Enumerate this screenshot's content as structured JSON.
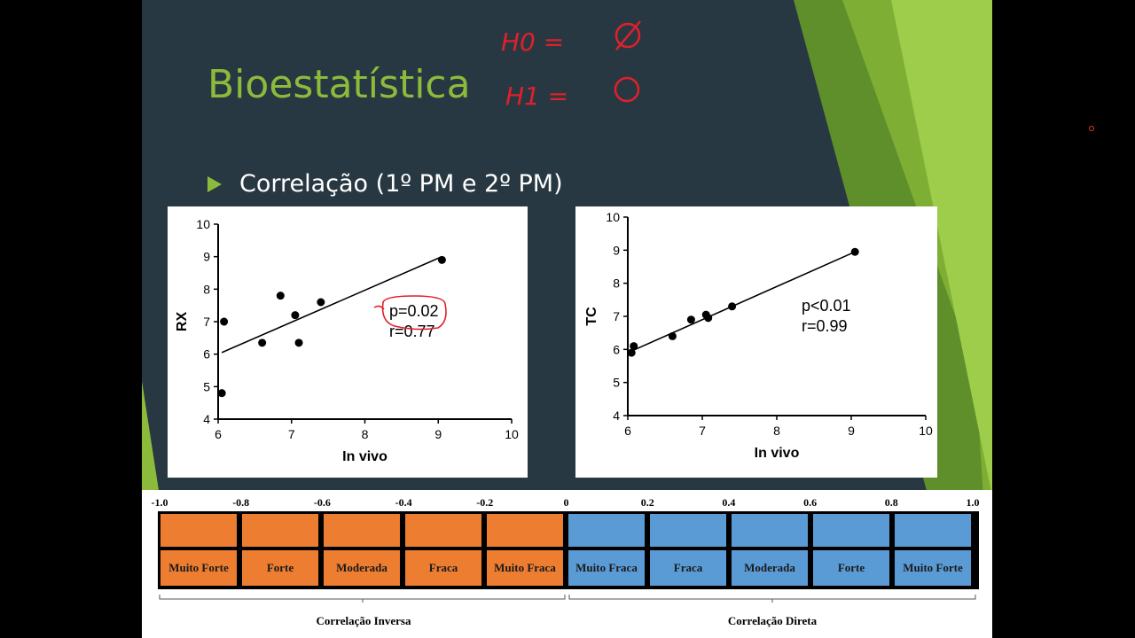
{
  "slide": {
    "title": "Bioestatística",
    "bullet": "Correlação (1º PM e 2º PM)"
  },
  "annotations": {
    "h0": "H0 =",
    "h1": "H1 =",
    "ink_color": "#e0202a"
  },
  "colors": {
    "slide_bg": "#283842",
    "title_green": "#8cbb3c",
    "orange": "#ed7d31",
    "blue": "#5b9bd5"
  },
  "chart_data": [
    {
      "type": "scatter",
      "xlabel": "In vivo",
      "ylabel": "RX",
      "xlim": [
        6,
        10
      ],
      "ylim": [
        4,
        10
      ],
      "xticks": [
        "6",
        "7",
        "8",
        "9",
        "10"
      ],
      "yticks": [
        "4",
        "5",
        "6",
        "7",
        "8",
        "9",
        "10"
      ],
      "points": [
        {
          "x": 6.05,
          "y": 4.8
        },
        {
          "x": 6.08,
          "y": 7.0
        },
        {
          "x": 6.6,
          "y": 6.35
        },
        {
          "x": 6.85,
          "y": 7.8
        },
        {
          "x": 7.05,
          "y": 7.2
        },
        {
          "x": 7.1,
          "y": 6.35
        },
        {
          "x": 7.4,
          "y": 7.6
        },
        {
          "x": 9.05,
          "y": 8.9
        }
      ],
      "fit": {
        "x0": 6.05,
        "y0": 6.05,
        "x1": 9.05,
        "y1": 9.0
      },
      "stats": [
        "p=0.02",
        "r=0.77"
      ]
    },
    {
      "type": "scatter",
      "xlabel": "In vivo",
      "ylabel": "TC",
      "xlim": [
        6,
        10
      ],
      "ylim": [
        4,
        10
      ],
      "xticks": [
        "6",
        "7",
        "8",
        "9",
        "10"
      ],
      "yticks": [
        "4",
        "5",
        "6",
        "7",
        "8",
        "9",
        "10"
      ],
      "points": [
        {
          "x": 6.05,
          "y": 5.9
        },
        {
          "x": 6.08,
          "y": 6.1
        },
        {
          "x": 6.6,
          "y": 6.4
        },
        {
          "x": 6.85,
          "y": 6.9
        },
        {
          "x": 7.05,
          "y": 7.05
        },
        {
          "x": 7.08,
          "y": 6.95
        },
        {
          "x": 7.4,
          "y": 7.3
        },
        {
          "x": 9.05,
          "y": 8.95
        }
      ],
      "fit": {
        "x0": 6.05,
        "y0": 5.95,
        "x1": 9.05,
        "y1": 8.95
      },
      "stats": [
        "p<0.01",
        "r=0.99"
      ]
    }
  ],
  "scale": {
    "ticks": [
      "-1.0",
      "-0.8",
      "-0.6",
      "-0.4",
      "-0.2",
      "0",
      "0.2",
      "0.4",
      "0.6",
      "0.8",
      "1.0"
    ],
    "labels": [
      "Muito Forte",
      "Forte",
      "Moderada",
      "Fraca",
      "Muito Fraca",
      "Muito Fraca",
      "Fraca",
      "Moderada",
      "Forte",
      "Muito Forte"
    ],
    "inverse": "Correlação Inversa",
    "direct": "Correlação Direta"
  }
}
